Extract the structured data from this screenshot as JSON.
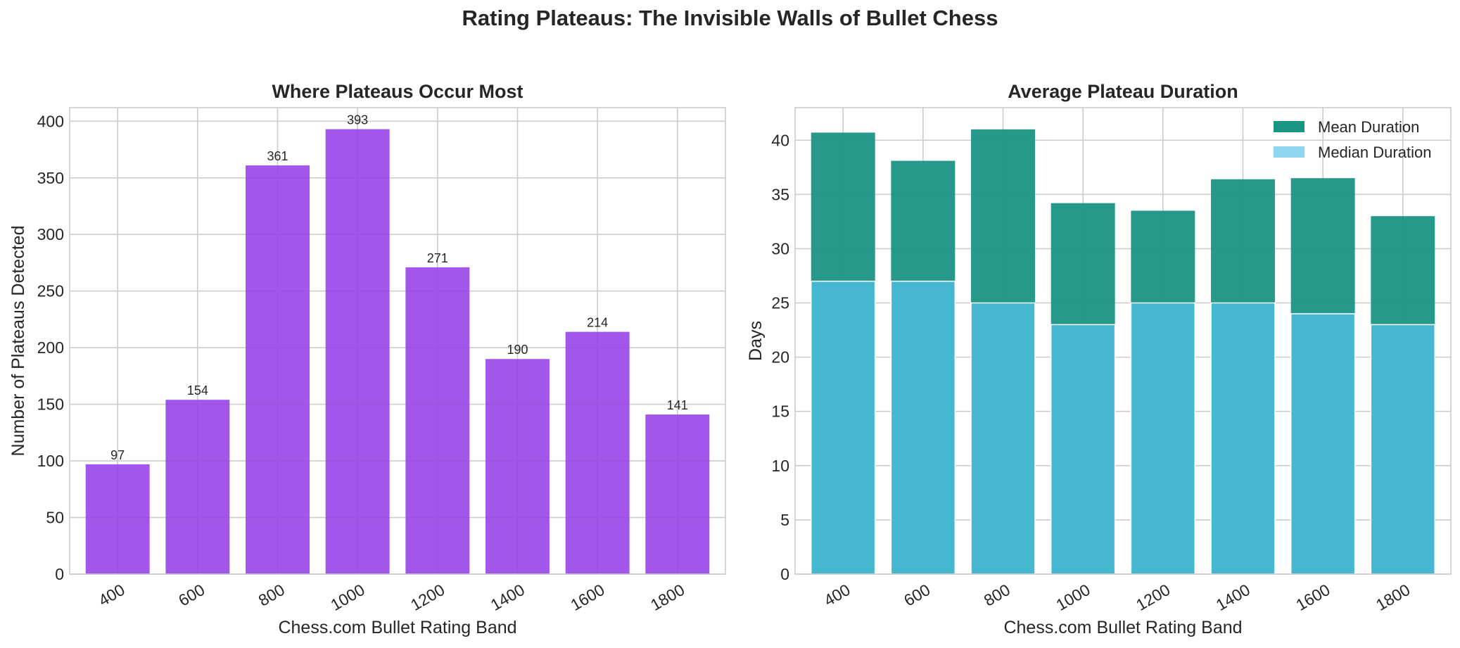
{
  "suptitle": "Rating Plateaus: The Invisible Walls of Bullet Chess",
  "colors": {
    "count_bar": "#9945E8",
    "mean_bar": "#1A9484",
    "median_bar": "#45B7D1",
    "median_legend": "#8FD6F0",
    "grid": "#cccccc",
    "spine": "#cccccc",
    "text": "#262626"
  },
  "chart_data": [
    {
      "type": "bar",
      "title": "Where Plateaus Occur Most",
      "xlabel": "Chess.com Bullet Rating Band",
      "ylabel": "Number of Plateaus Detected",
      "categories": [
        "400",
        "600",
        "800",
        "1000",
        "1200",
        "1400",
        "1600",
        "1800"
      ],
      "values": [
        97,
        154,
        361,
        393,
        271,
        190,
        214,
        141
      ],
      "data_labels": [
        "97",
        "154",
        "361",
        "393",
        "271",
        "190",
        "214",
        "141"
      ],
      "ylim": [
        0,
        412
      ],
      "yticks": [
        0,
        50,
        100,
        150,
        200,
        250,
        300,
        350,
        400
      ],
      "grid": true
    },
    {
      "type": "bar",
      "title": "Average Plateau Duration",
      "xlabel": "Chess.com Bullet Rating Band",
      "ylabel": "Days",
      "categories": [
        "400",
        "600",
        "800",
        "1000",
        "1200",
        "1400",
        "1600",
        "1800"
      ],
      "series": [
        {
          "name": "Mean Duration",
          "values": [
            40.7,
            38.1,
            41.0,
            34.2,
            33.5,
            36.4,
            36.5,
            33.0
          ]
        },
        {
          "name": "Median Duration",
          "values": [
            27,
            27,
            25,
            23,
            25,
            25,
            24,
            23
          ]
        }
      ],
      "ylim": [
        0,
        43
      ],
      "yticks": [
        0,
        5,
        10,
        15,
        20,
        25,
        30,
        35,
        40
      ],
      "grid": true,
      "legend": "top-right"
    }
  ]
}
